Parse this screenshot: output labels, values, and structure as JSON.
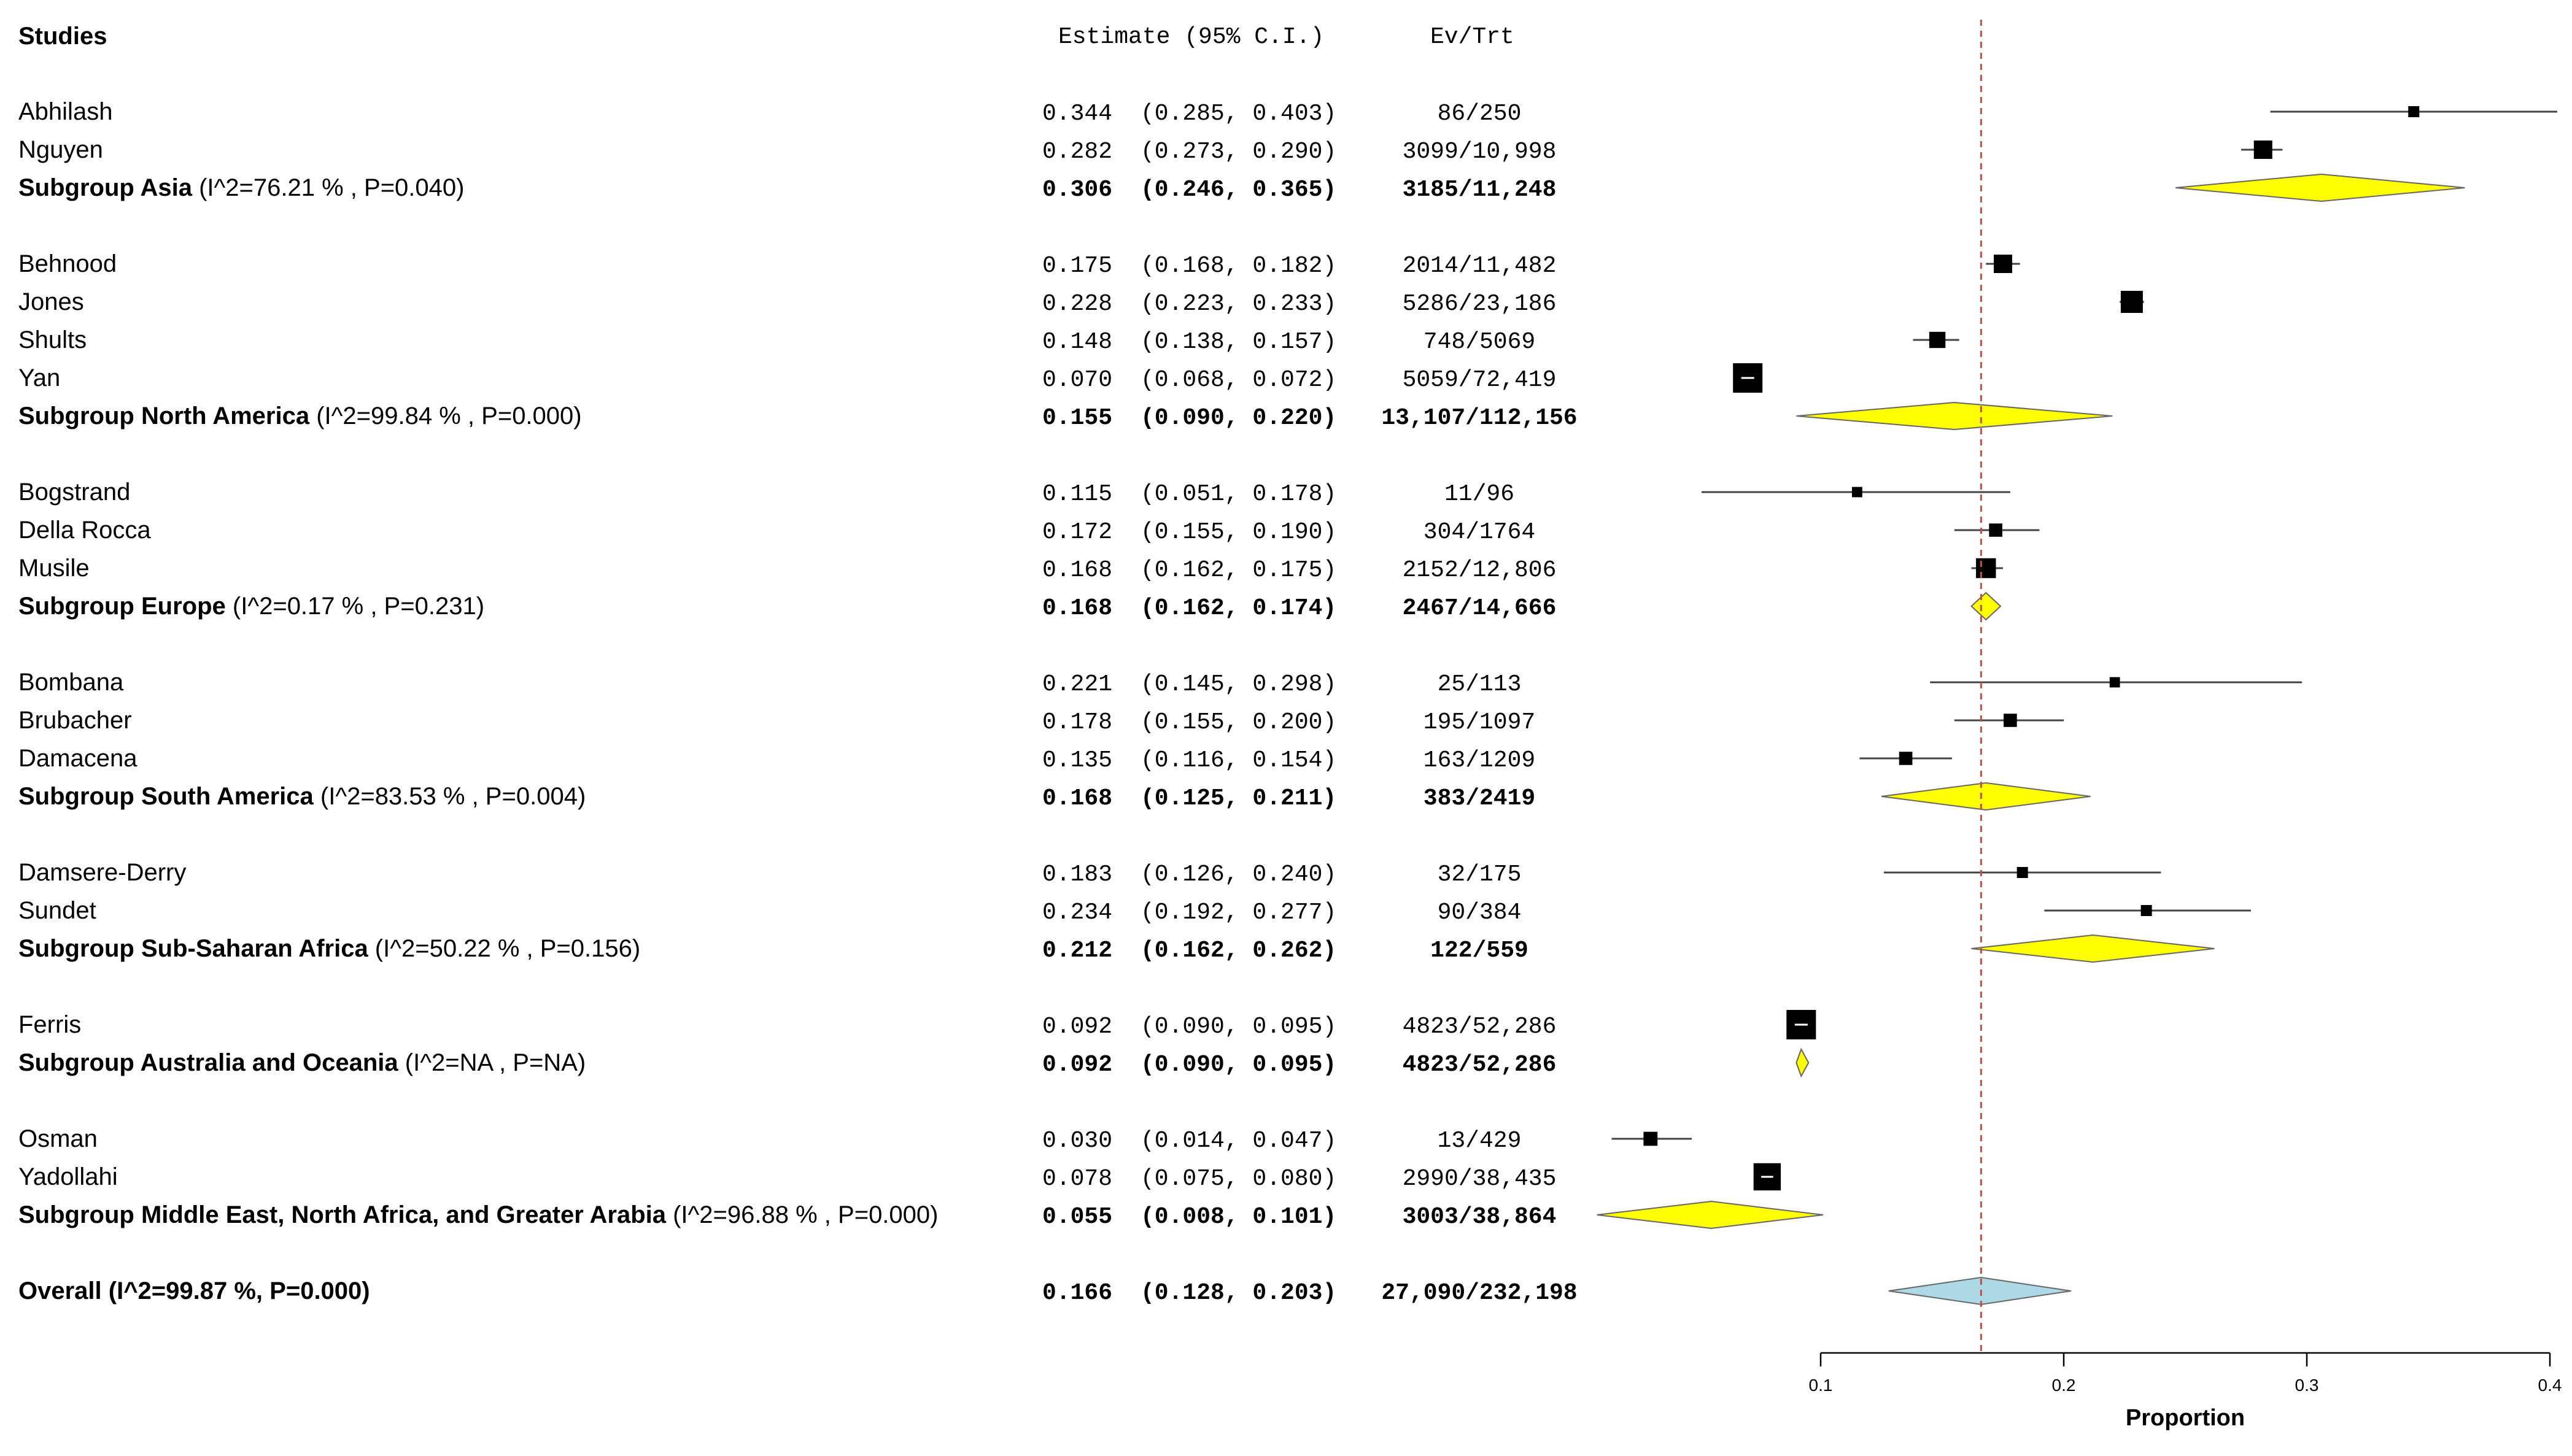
{
  "chart_data": {
    "type": "forest",
    "headers": {
      "studies": "Studies",
      "estimate": "Estimate (95% C.I.)",
      "events": "Ev/Trt"
    },
    "xlabel": "Proportion",
    "xlim": [
      0.1,
      0.4
    ],
    "xticks": [
      0.1,
      0.2,
      0.3,
      0.4
    ],
    "xtick_labels": [
      "0.1",
      "0.2",
      "0.3",
      "0.4"
    ],
    "reference_line": 0.166,
    "colors": {
      "subgroup_diamond": "#ffff00",
      "overall_diamond": "#add8e6",
      "reference_line": "#c0504d",
      "study_marker": "#000000"
    },
    "rows": [
      {
        "kind": "study",
        "label": "Abhilash",
        "est": 0.344,
        "lo": 0.285,
        "hi": 0.403,
        "text_est": "0.344",
        "text_ci": "(0.285, 0.403)",
        "events": "86/250",
        "weight": 0.5
      },
      {
        "kind": "study",
        "label": "Nguyen",
        "est": 0.282,
        "lo": 0.273,
        "hi": 0.29,
        "text_est": "0.282",
        "text_ci": "(0.273, 0.290)",
        "events": "3099/10,998",
        "weight": 1.5
      },
      {
        "kind": "subgroup",
        "label": "Subgroup Asia",
        "stats": "(I^2=76.21 % ,  P=0.040)",
        "est": 0.306,
        "lo": 0.246,
        "hi": 0.365,
        "text_est": "0.306",
        "text_ci": "(0.246, 0.365)",
        "events": "3185/11,248"
      },
      {
        "kind": "gap"
      },
      {
        "kind": "study",
        "label": "Behnood",
        "est": 0.175,
        "lo": 0.168,
        "hi": 0.182,
        "text_est": "0.175",
        "text_ci": "(0.168, 0.182)",
        "events": "2014/11,482",
        "weight": 1.5
      },
      {
        "kind": "study",
        "label": "Jones",
        "est": 0.228,
        "lo": 0.223,
        "hi": 0.233,
        "text_est": "0.228",
        "text_ci": "(0.223, 0.233)",
        "events": "5286/23,186",
        "weight": 2.0
      },
      {
        "kind": "study",
        "label": "Shults",
        "est": 0.148,
        "lo": 0.138,
        "hi": 0.157,
        "text_est": "0.148",
        "text_ci": "(0.138, 0.157)",
        "events": "748/5069",
        "weight": 1.2
      },
      {
        "kind": "study",
        "label": "Yan",
        "est": 0.07,
        "lo": 0.068,
        "hi": 0.072,
        "text_est": "0.070",
        "text_ci": "(0.068, 0.072)",
        "events": "5059/72,419",
        "weight": 3.0
      },
      {
        "kind": "subgroup",
        "label": "Subgroup North America",
        "stats": "(I^2=99.84 % , P=0.000)",
        "est": 0.155,
        "lo": 0.09,
        "hi": 0.22,
        "text_est": "0.155",
        "text_ci": "(0.090, 0.220)",
        "events": "13,107/112,156"
      },
      {
        "kind": "gap"
      },
      {
        "kind": "study",
        "label": "Bogstrand",
        "est": 0.115,
        "lo": 0.051,
        "hi": 0.178,
        "text_est": "0.115",
        "text_ci": "(0.051, 0.178)",
        "events": "11/96",
        "weight": 0.4
      },
      {
        "kind": "study",
        "label": "Della Rocca",
        "est": 0.172,
        "lo": 0.155,
        "hi": 0.19,
        "text_est": "0.172",
        "text_ci": "(0.155, 0.190)",
        "events": "304/1764",
        "weight": 0.8
      },
      {
        "kind": "study",
        "label": "Musile",
        "est": 0.168,
        "lo": 0.162,
        "hi": 0.175,
        "text_est": "0.168",
        "text_ci": "(0.162, 0.175)",
        "events": "2152/12,806",
        "weight": 1.7
      },
      {
        "kind": "subgroup",
        "label": "Subgroup Europe",
        "stats": "(I^2=0.17 % , P=0.231)",
        "est": 0.168,
        "lo": 0.162,
        "hi": 0.174,
        "text_est": "0.168",
        "text_ci": "(0.162, 0.174)",
        "events": "2467/14,666"
      },
      {
        "kind": "gap"
      },
      {
        "kind": "study",
        "label": "Bombana",
        "est": 0.221,
        "lo": 0.145,
        "hi": 0.298,
        "text_est": "0.221",
        "text_ci": "(0.145, 0.298)",
        "events": "25/113",
        "weight": 0.4
      },
      {
        "kind": "study",
        "label": "Brubacher",
        "est": 0.178,
        "lo": 0.155,
        "hi": 0.2,
        "text_est": "0.178",
        "text_ci": "(0.155, 0.200)",
        "events": "195/1097",
        "weight": 0.8
      },
      {
        "kind": "study",
        "label": "Damacena",
        "est": 0.135,
        "lo": 0.116,
        "hi": 0.154,
        "text_est": "0.135",
        "text_ci": "(0.116, 0.154)",
        "events": "163/1209",
        "weight": 0.8
      },
      {
        "kind": "subgroup",
        "label": "Subgroup South America",
        "stats": "(I^2=83.53 % ,  P=0.004)",
        "est": 0.168,
        "lo": 0.125,
        "hi": 0.211,
        "text_est": "0.168",
        "text_ci": "(0.125, 0.211)",
        "events": "383/2419"
      },
      {
        "kind": "gap"
      },
      {
        "kind": "study",
        "label": "Damsere-Derry",
        "est": 0.183,
        "lo": 0.126,
        "hi": 0.24,
        "text_est": "0.183",
        "text_ci": "(0.126, 0.240)",
        "events": "32/175",
        "weight": 0.5
      },
      {
        "kind": "study",
        "label": "Sundet",
        "est": 0.234,
        "lo": 0.192,
        "hi": 0.277,
        "text_est": "0.234",
        "text_ci": "(0.192, 0.277)",
        "events": "90/384",
        "weight": 0.5
      },
      {
        "kind": "subgroup",
        "label": "Subgroup Sub-Saharan Africa",
        "stats": "(I^2=50.22 % ,  P=0.156)",
        "est": 0.212,
        "lo": 0.162,
        "hi": 0.262,
        "text_est": "0.212",
        "text_ci": "(0.162, 0.262)",
        "events": "122/559"
      },
      {
        "kind": "gap"
      },
      {
        "kind": "study",
        "label": "Ferris",
        "est": 0.092,
        "lo": 0.09,
        "hi": 0.095,
        "text_est": "0.092",
        "text_ci": "(0.090, 0.095)",
        "events": "4823/52,286",
        "weight": 3.0
      },
      {
        "kind": "subgroup",
        "label": "Subgroup Australia and Oceania",
        "stats": "(I^2=NA ,  P=NA)",
        "est": 0.092,
        "lo": 0.09,
        "hi": 0.095,
        "text_est": "0.092",
        "text_ci": "(0.090, 0.095)",
        "events": "4823/52,286"
      },
      {
        "kind": "gap"
      },
      {
        "kind": "study",
        "label": "Osman",
        "est": 0.03,
        "lo": 0.014,
        "hi": 0.047,
        "text_est": "0.030",
        "text_ci": "(0.014, 0.047)",
        "events": "13/429",
        "weight": 0.9
      },
      {
        "kind": "study",
        "label": "Yadollahi",
        "est": 0.078,
        "lo": 0.075,
        "hi": 0.08,
        "text_est": "0.078",
        "text_ci": "(0.075, 0.080)",
        "events": "2990/38,435",
        "weight": 2.7
      },
      {
        "kind": "subgroup",
        "label": "Subgroup Middle East, North Africa, and Greater Arabia",
        "stats": "(I^2=96.88 % , P=0.000)",
        "est": 0.055,
        "lo": 0.008,
        "hi": 0.101,
        "text_est": "0.055",
        "text_ci": "(0.008, 0.101)",
        "events": "3003/38,864"
      },
      {
        "kind": "gap"
      },
      {
        "kind": "overall",
        "label": "Overall (I^2=99.87 %, P=0.000)",
        "est": 0.166,
        "lo": 0.128,
        "hi": 0.203,
        "text_est": "0.166",
        "text_ci": "(0.128, 0.203)",
        "events": "27,090/232,198"
      }
    ]
  }
}
